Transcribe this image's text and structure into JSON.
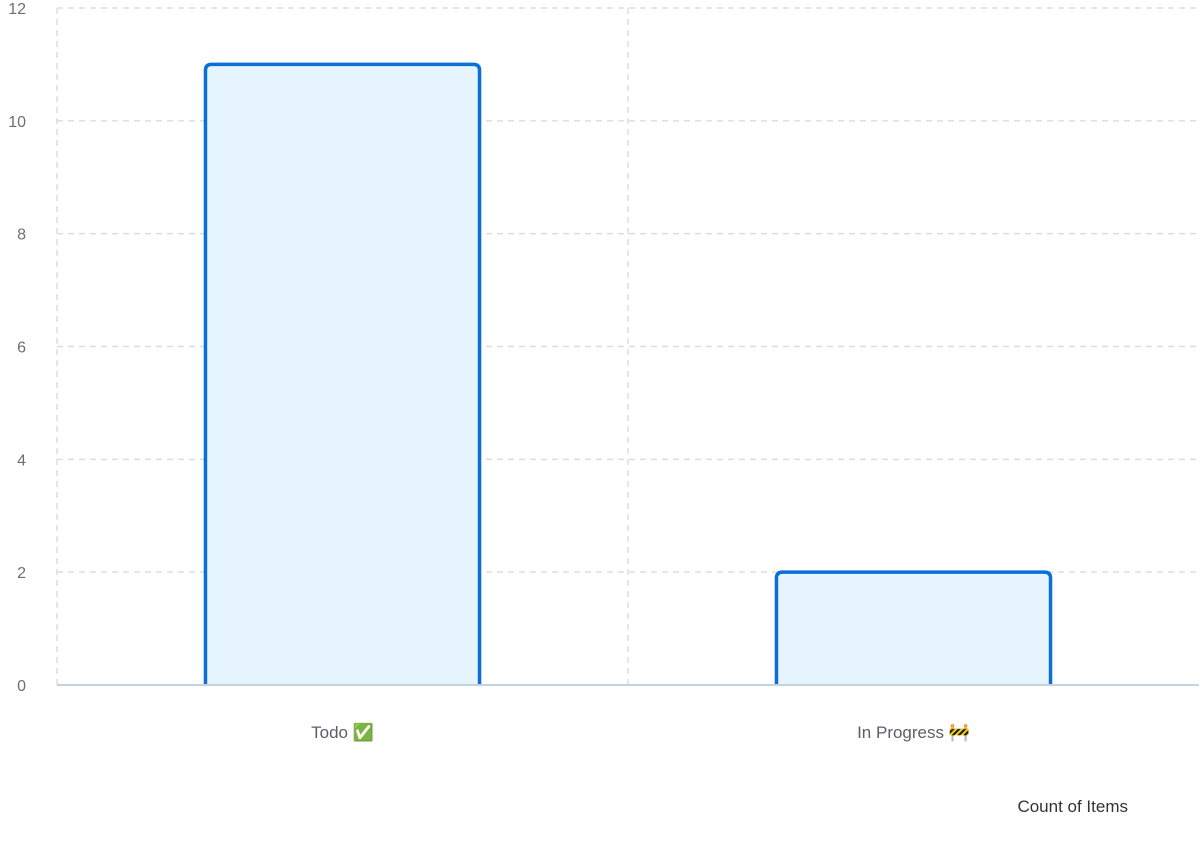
{
  "chart_data": {
    "type": "bar",
    "categories": [
      "Todo ✅",
      "In Progress 🚧"
    ],
    "series": [
      {
        "name": "Count of Items",
        "values": [
          11,
          2
        ]
      }
    ],
    "ylim": [
      0,
      12
    ],
    "yticks": [
      0,
      2,
      4,
      6,
      8,
      10,
      12
    ],
    "grid": true,
    "legend_position": "bottom-right",
    "colors": {
      "bar_fill": "#e6f4fd",
      "bar_stroke": "#0a6fd6",
      "grid": "#dddddd",
      "axis": "#c5d3e0"
    }
  }
}
